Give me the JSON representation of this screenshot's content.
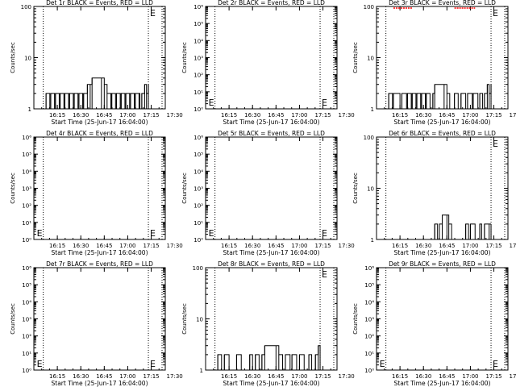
{
  "figure": {
    "background": "#ffffff",
    "axis_color": "#000000",
    "event_color": "#000000",
    "lld_color": "#ff0000",
    "marker_label": "E"
  },
  "chart_data": [
    {
      "type": "line",
      "title": "Det 1r BLACK = Events, RED = LLD",
      "xlabel": "Start Time (25-Jun-17 16:04:00)",
      "ylabel": "Counts/sec",
      "scale": "log",
      "ylim": [
        1,
        100
      ],
      "yticks": [
        "1",
        "10",
        "100"
      ],
      "xticks": [
        "16:15",
        "16:30",
        "16:45",
        "17:00",
        "17:15",
        "17:30"
      ],
      "events": [
        [
          16.05,
          1
        ],
        [
          16.12,
          1
        ],
        [
          16.13,
          2
        ],
        [
          16.17,
          1
        ],
        [
          16.18,
          2
        ],
        [
          16.22,
          1
        ],
        [
          16.23,
          2
        ],
        [
          16.27,
          1
        ],
        [
          16.28,
          2
        ],
        [
          16.32,
          1
        ],
        [
          16.33,
          2
        ],
        [
          16.37,
          1
        ],
        [
          16.38,
          2
        ],
        [
          16.42,
          1
        ],
        [
          16.43,
          2
        ],
        [
          16.47,
          1
        ],
        [
          16.48,
          2
        ],
        [
          16.52,
          1
        ],
        [
          16.53,
          2
        ],
        [
          16.57,
          3
        ],
        [
          16.6,
          3
        ],
        [
          16.62,
          4
        ],
        [
          16.72,
          4
        ],
        [
          16.75,
          3
        ],
        [
          16.78,
          2
        ],
        [
          16.82,
          1
        ],
        [
          16.83,
          2
        ],
        [
          16.87,
          1
        ],
        [
          16.88,
          2
        ],
        [
          16.92,
          1
        ],
        [
          16.93,
          2
        ],
        [
          16.97,
          1
        ],
        [
          16.98,
          2
        ],
        [
          17.02,
          1
        ],
        [
          17.03,
          2
        ],
        [
          17.07,
          1
        ],
        [
          17.08,
          2
        ],
        [
          17.12,
          2
        ],
        [
          17.13,
          1
        ],
        [
          17.15,
          2
        ],
        [
          17.18,
          3
        ],
        [
          17.2,
          2
        ],
        [
          17.22,
          3
        ]
      ],
      "lld": []
    },
    {
      "type": "line",
      "title": "Det 2r BLACK = Events, RED = LLD",
      "xlabel": "Start Time (25-Jun-17 16:04:00)",
      "ylabel": "Counts/sec",
      "scale": "log",
      "ylim": [
        1,
        1000000
      ],
      "yticks": [
        "10⁰",
        "10¹",
        "10²",
        "10³",
        "10⁴",
        "10⁵",
        "10⁶"
      ],
      "xticks": [
        "16:15",
        "16:30",
        "16:45",
        "17:00",
        "17:15",
        "17:30"
      ],
      "events": [],
      "lld": []
    },
    {
      "type": "line",
      "title": "Det 3r BLACK = Events, RED = LLD",
      "xlabel": "Start Time (25-Jun-17 16:04:00)",
      "ylabel": "Counts/sec",
      "scale": "log",
      "ylim": [
        1,
        100
      ],
      "yticks": [
        "1",
        "10",
        "100"
      ],
      "xticks": [
        "16:15",
        "16:30",
        "16:45",
        "17:00",
        "17:15",
        "17:30"
      ],
      "events": [
        [
          16.1,
          1
        ],
        [
          16.12,
          1
        ],
        [
          16.13,
          2
        ],
        [
          16.17,
          1
        ],
        [
          16.18,
          2
        ],
        [
          16.25,
          1
        ],
        [
          16.27,
          2
        ],
        [
          16.32,
          1
        ],
        [
          16.33,
          2
        ],
        [
          16.37,
          1
        ],
        [
          16.38,
          2
        ],
        [
          16.42,
          1
        ],
        [
          16.43,
          2
        ],
        [
          16.47,
          1
        ],
        [
          16.48,
          2
        ],
        [
          16.52,
          1
        ],
        [
          16.53,
          2
        ],
        [
          16.57,
          1
        ],
        [
          16.6,
          2
        ],
        [
          16.62,
          3
        ],
        [
          16.72,
          3
        ],
        [
          16.75,
          2
        ],
        [
          16.78,
          1
        ],
        [
          16.82,
          1
        ],
        [
          16.83,
          2
        ],
        [
          16.87,
          1
        ],
        [
          16.9,
          2
        ],
        [
          16.95,
          1
        ],
        [
          16.97,
          2
        ],
        [
          17.02,
          1
        ],
        [
          17.03,
          2
        ],
        [
          17.08,
          1
        ],
        [
          17.1,
          2
        ],
        [
          17.13,
          1
        ],
        [
          17.15,
          2
        ],
        [
          17.18,
          3
        ],
        [
          17.2,
          2
        ],
        [
          17.22,
          3
        ]
      ],
      "lld": [
        [
          16.18,
          100
        ],
        [
          16.38,
          100
        ],
        [
          16.83,
          100
        ],
        [
          17.05,
          100
        ]
      ]
    },
    {
      "type": "line",
      "title": "Det 4r BLACK = Events, RED = LLD",
      "xlabel": "Start Time (25-Jun-17 16:04:00)",
      "ylabel": "Counts/sec",
      "scale": "log",
      "ylim": [
        1,
        1000000
      ],
      "yticks": [
        "10⁰",
        "10¹",
        "10²",
        "10³",
        "10⁴",
        "10⁵",
        "10⁶"
      ],
      "xticks": [
        "16:15",
        "16:30",
        "16:45",
        "17:00",
        "17:15",
        "17:30"
      ],
      "events": [],
      "lld": []
    },
    {
      "type": "line",
      "title": "Det 5r BLACK = Events, RED = LLD",
      "xlabel": "Start Time (25-Jun-17 16:04:00)",
      "ylabel": "Counts/sec",
      "scale": "log",
      "ylim": [
        1,
        1000000
      ],
      "yticks": [
        "10⁰",
        "10¹",
        "10²",
        "10³",
        "10⁴",
        "10⁵",
        "10⁶"
      ],
      "xticks": [
        "16:15",
        "16:30",
        "16:45",
        "17:00",
        "17:15",
        "17:30"
      ],
      "events": [],
      "lld": []
    },
    {
      "type": "line",
      "title": "Det 6r BLACK = Events, RED = LLD",
      "xlabel": "Start Time (25-Jun-17 16:04:00)",
      "ylabel": "Counts/sec",
      "scale": "log",
      "ylim": [
        1,
        100
      ],
      "yticks": [
        "1",
        "10",
        "100"
      ],
      "xticks": [
        "16:15",
        "16:30",
        "16:45",
        "17:00",
        "17:15",
        "17:30"
      ],
      "events": [
        [
          16.6,
          1
        ],
        [
          16.62,
          2
        ],
        [
          16.65,
          1
        ],
        [
          16.67,
          2
        ],
        [
          16.7,
          3
        ],
        [
          16.75,
          3
        ],
        [
          16.77,
          2
        ],
        [
          16.8,
          1
        ],
        [
          16.85,
          1
        ],
        [
          16.92,
          1
        ],
        [
          16.95,
          2
        ],
        [
          16.98,
          1
        ],
        [
          17.0,
          2
        ],
        [
          17.05,
          1
        ],
        [
          17.1,
          2
        ],
        [
          17.12,
          1
        ],
        [
          17.15,
          2
        ],
        [
          17.2,
          2
        ],
        [
          17.22,
          2
        ]
      ],
      "lld": []
    },
    {
      "type": "line",
      "title": "Det 7r BLACK = Events, RED = LLD",
      "xlabel": "Start Time (25-Jun-17 16:04:00)",
      "ylabel": "Counts/sec",
      "scale": "log",
      "ylim": [
        1,
        1000000
      ],
      "yticks": [
        "10⁰",
        "10¹",
        "10²",
        "10³",
        "10⁴",
        "10⁵",
        "10⁶"
      ],
      "xticks": [
        "16:15",
        "16:30",
        "16:45",
        "17:00",
        "17:15",
        "17:30"
      ],
      "events": [],
      "lld": []
    },
    {
      "type": "line",
      "title": "Det 8r BLACK = Events, RED = LLD",
      "xlabel": "Start Time (25-Jun-17 16:04:00)",
      "ylabel": "Counts/sec",
      "scale": "log",
      "ylim": [
        1,
        100
      ],
      "yticks": [
        "1",
        "10",
        "100"
      ],
      "xticks": [
        "16:15",
        "16:30",
        "16:45",
        "17:00",
        "17:15",
        "17:30"
      ],
      "events": [
        [
          16.1,
          1
        ],
        [
          16.13,
          2
        ],
        [
          16.17,
          1
        ],
        [
          16.2,
          2
        ],
        [
          16.25,
          1
        ],
        [
          16.3,
          1
        ],
        [
          16.33,
          2
        ],
        [
          16.38,
          1
        ],
        [
          16.43,
          1
        ],
        [
          16.47,
          2
        ],
        [
          16.5,
          1
        ],
        [
          16.53,
          2
        ],
        [
          16.57,
          1
        ],
        [
          16.6,
          2
        ],
        [
          16.63,
          3
        ],
        [
          16.75,
          3
        ],
        [
          16.78,
          2
        ],
        [
          16.82,
          1
        ],
        [
          16.85,
          2
        ],
        [
          16.9,
          1
        ],
        [
          16.92,
          2
        ],
        [
          16.97,
          1
        ],
        [
          17.0,
          2
        ],
        [
          17.05,
          1
        ],
        [
          17.1,
          2
        ],
        [
          17.13,
          1
        ],
        [
          17.17,
          2
        ],
        [
          17.2,
          3
        ],
        [
          17.22,
          1
        ]
      ],
      "lld": []
    },
    {
      "type": "line",
      "title": "Det 9r BLACK = Events, RED = LLD",
      "xlabel": "Start Time (25-Jun-17 16:04:00)",
      "ylabel": "Counts/sec",
      "scale": "log",
      "ylim": [
        1,
        1000000
      ],
      "yticks": [
        "10⁰",
        "10¹",
        "10²",
        "10³",
        "10⁴",
        "10⁵",
        "10⁶"
      ],
      "xticks": [
        "16:15",
        "16:30",
        "16:45",
        "17:00",
        "17:15",
        "17:30"
      ],
      "events": [],
      "lld": []
    }
  ]
}
